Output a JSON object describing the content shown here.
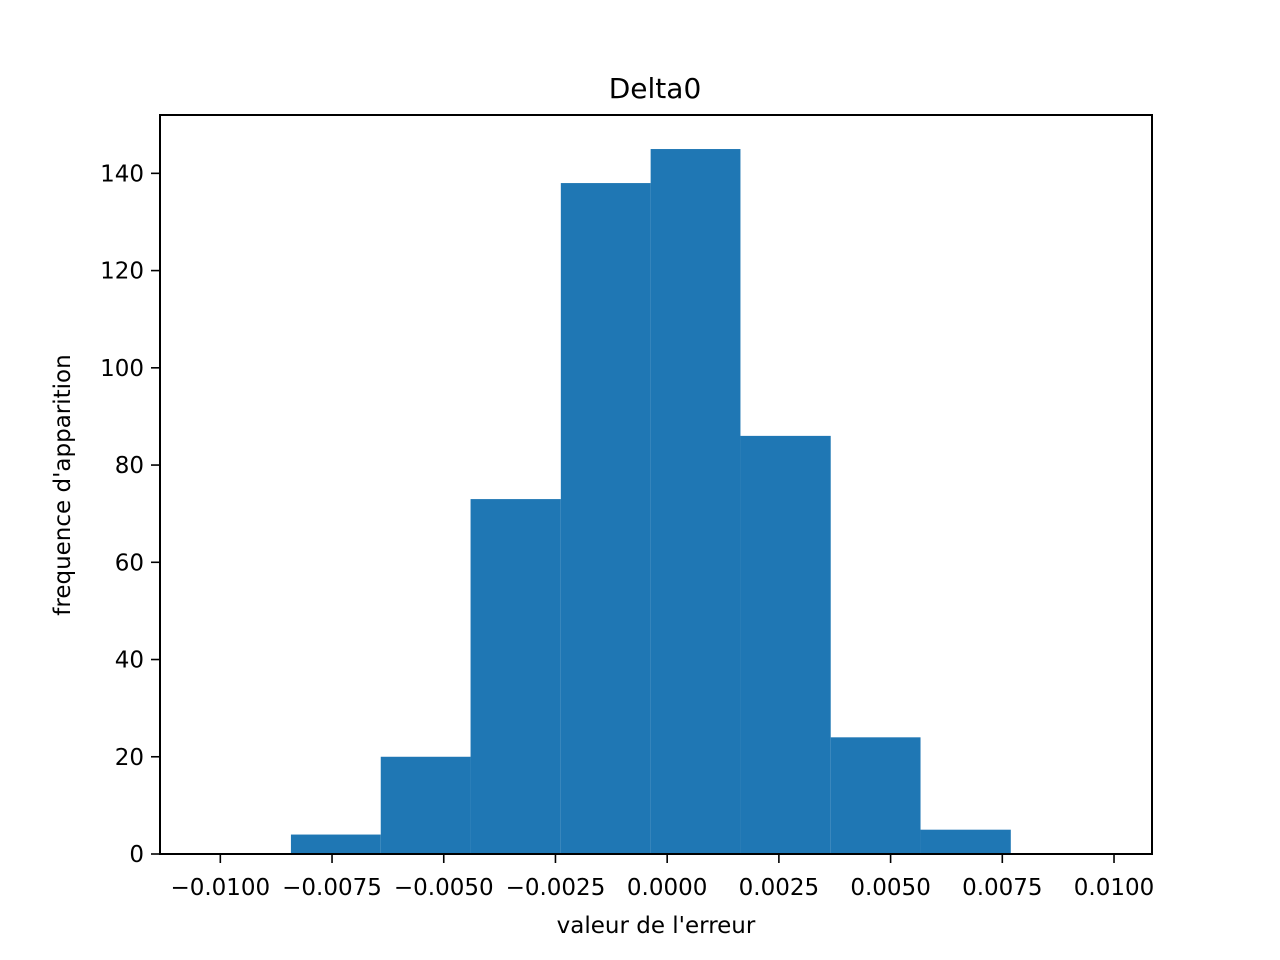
{
  "chart_data": {
    "type": "bar",
    "subtype": "histogram",
    "title": "Delta0",
    "xlabel": "valeur de l'erreur",
    "ylabel": "frequence d'apparition",
    "xlim": [
      -0.01135,
      0.01085
    ],
    "ylim": [
      0,
      152
    ],
    "grid": false,
    "bar_color": "#1f77b4",
    "bins": [
      {
        "x0": -0.00842,
        "x1": -0.00641,
        "value": 4
      },
      {
        "x0": -0.00641,
        "x1": -0.0044,
        "value": 20
      },
      {
        "x0": -0.0044,
        "x1": -0.00238,
        "value": 73
      },
      {
        "x0": -0.00238,
        "x1": -0.00037,
        "value": 138
      },
      {
        "x0": -0.00037,
        "x1": 0.00164,
        "value": 145
      },
      {
        "x0": 0.00164,
        "x1": 0.00366,
        "value": 86
      },
      {
        "x0": 0.00366,
        "x1": 0.00567,
        "value": 24
      },
      {
        "x0": 0.00567,
        "x1": 0.00769,
        "value": 5
      },
      {
        "x0": 0.00769,
        "x1": 0.0097,
        "value": 0
      }
    ],
    "x_ticks": [
      {
        "value": -0.01,
        "label": "−0.0100"
      },
      {
        "value": -0.0075,
        "label": "−0.0075"
      },
      {
        "value": -0.005,
        "label": "−0.0050"
      },
      {
        "value": -0.0025,
        "label": "−0.0025"
      },
      {
        "value": 0.0,
        "label": "0.0000"
      },
      {
        "value": 0.0025,
        "label": "0.0025"
      },
      {
        "value": 0.005,
        "label": "0.0050"
      },
      {
        "value": 0.0075,
        "label": "0.0075"
      },
      {
        "value": 0.01,
        "label": "0.0100"
      }
    ],
    "y_ticks": [
      {
        "value": 0,
        "label": "0"
      },
      {
        "value": 20,
        "label": "20"
      },
      {
        "value": 40,
        "label": "40"
      },
      {
        "value": 60,
        "label": "60"
      },
      {
        "value": 80,
        "label": "80"
      },
      {
        "value": 100,
        "label": "100"
      },
      {
        "value": 120,
        "label": "120"
      },
      {
        "value": 140,
        "label": "140"
      }
    ]
  }
}
